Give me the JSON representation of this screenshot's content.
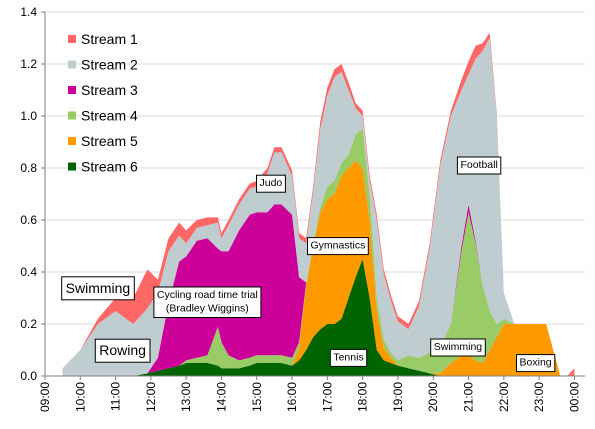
{
  "chart_data": {
    "type": "area",
    "stacked": true,
    "title": "",
    "xlabel": "",
    "ylabel": "",
    "ylim": [
      0,
      1.4
    ],
    "y_ticks": [
      0.0,
      0.2,
      0.4,
      0.6,
      0.8,
      1.0,
      1.2,
      1.4
    ],
    "y_tick_labels": [
      "0.0",
      "0.2",
      "0.4",
      "0.6",
      "0.8",
      "1.0",
      "1.2",
      "1.4"
    ],
    "x_ticks": [
      9,
      10,
      11,
      12,
      13,
      14,
      15,
      16,
      17,
      18,
      19,
      20,
      21,
      22,
      23,
      24
    ],
    "x_tick_labels": [
      "09:00",
      "10:00",
      "11:00",
      "12:00",
      "13:00",
      "14:00",
      "15:00",
      "16:00",
      "17:00",
      "18:00",
      "19:00",
      "20:00",
      "21:00",
      "22:00",
      "23:00",
      "00:00"
    ],
    "xlim": [
      9,
      24.3
    ],
    "grid": "horizontal",
    "legend_position": "top-left",
    "x": [
      9.5,
      10.0,
      10.5,
      11.0,
      11.5,
      11.9,
      12.2,
      12.5,
      12.8,
      13.0,
      13.3,
      13.6,
      13.9,
      14.0,
      14.2,
      14.5,
      14.8,
      15.0,
      15.3,
      15.5,
      15.7,
      16.0,
      16.2,
      16.4,
      16.6,
      16.8,
      17.0,
      17.2,
      17.4,
      17.6,
      17.8,
      18.0,
      18.2,
      18.4,
      18.6,
      18.8,
      19.0,
      19.3,
      19.6,
      19.9,
      20.2,
      20.5,
      20.8,
      21.0,
      21.2,
      21.4,
      21.6,
      21.8,
      22.0,
      22.3,
      22.6,
      22.9,
      23.2,
      23.4,
      23.6,
      23.8,
      24.0
    ],
    "series": [
      {
        "name": "Stream 6",
        "color": "#006400",
        "values": [
          0.0,
          0.0,
          0.0,
          0.0,
          0.0,
          0.01,
          0.02,
          0.03,
          0.04,
          0.05,
          0.05,
          0.05,
          0.04,
          0.03,
          0.03,
          0.03,
          0.04,
          0.05,
          0.05,
          0.05,
          0.05,
          0.04,
          0.06,
          0.1,
          0.15,
          0.18,
          0.2,
          0.2,
          0.22,
          0.3,
          0.38,
          0.45,
          0.3,
          0.1,
          0.06,
          0.05,
          0.04,
          0.03,
          0.02,
          0.01,
          0.0,
          0.0,
          0.0,
          0.0,
          0.0,
          0.0,
          0.0,
          0.0,
          0.0,
          0.0,
          0.0,
          0.0,
          0.0,
          0.0,
          0.0,
          0.0,
          0.0
        ]
      },
      {
        "name": "Stream 5",
        "color": "#FF9900",
        "values": [
          0.0,
          0.0,
          0.0,
          0.0,
          0.0,
          0.0,
          0.0,
          0.0,
          0.0,
          0.0,
          0.0,
          0.0,
          0.0,
          0.0,
          0.0,
          0.0,
          0.0,
          0.0,
          0.0,
          0.0,
          0.0,
          0.0,
          0.05,
          0.25,
          0.35,
          0.45,
          0.48,
          0.5,
          0.55,
          0.5,
          0.45,
          0.35,
          0.3,
          0.15,
          0.05,
          0.02,
          0.0,
          0.0,
          0.0,
          0.0,
          0.01,
          0.05,
          0.08,
          0.08,
          0.06,
          0.05,
          0.1,
          0.15,
          0.2,
          0.2,
          0.2,
          0.2,
          0.2,
          0.1,
          0.0,
          0.0,
          0.0
        ]
      },
      {
        "name": "Stream 4",
        "color": "#99CC66",
        "values": [
          0.0,
          0.0,
          0.0,
          0.0,
          0.0,
          0.0,
          0.0,
          0.0,
          0.0,
          0.01,
          0.02,
          0.03,
          0.15,
          0.1,
          0.05,
          0.03,
          0.03,
          0.03,
          0.03,
          0.03,
          0.03,
          0.03,
          0.02,
          0.01,
          0.01,
          0.02,
          0.05,
          0.05,
          0.05,
          0.05,
          0.1,
          0.15,
          0.1,
          0.05,
          0.03,
          0.02,
          0.02,
          0.05,
          0.05,
          0.08,
          0.1,
          0.15,
          0.4,
          0.55,
          0.45,
          0.3,
          0.15,
          0.05,
          0.02,
          0.0,
          0.0,
          0.0,
          0.0,
          0.0,
          0.0,
          0.0,
          0.0
        ]
      },
      {
        "name": "Stream 3",
        "color": "#CC0099",
        "values": [
          0.0,
          0.0,
          0.0,
          0.0,
          0.0,
          0.0,
          0.05,
          0.25,
          0.4,
          0.4,
          0.45,
          0.45,
          0.3,
          0.35,
          0.4,
          0.5,
          0.55,
          0.55,
          0.55,
          0.58,
          0.58,
          0.55,
          0.25,
          0.0,
          0.0,
          0.0,
          0.0,
          0.0,
          0.0,
          0.0,
          0.0,
          0.0,
          0.0,
          0.0,
          0.0,
          0.0,
          0.0,
          0.0,
          0.0,
          0.0,
          0.0,
          0.0,
          0.02,
          0.03,
          0.01,
          0.0,
          0.0,
          0.0,
          0.0,
          0.0,
          0.0,
          0.0,
          0.0,
          0.0,
          0.0,
          0.0,
          0.0
        ]
      },
      {
        "name": "Stream 2",
        "color": "#BFCCD0",
        "values": [
          0.03,
          0.1,
          0.2,
          0.25,
          0.2,
          0.25,
          0.25,
          0.2,
          0.1,
          0.05,
          0.05,
          0.05,
          0.1,
          0.05,
          0.1,
          0.1,
          0.1,
          0.1,
          0.15,
          0.2,
          0.2,
          0.15,
          0.15,
          0.15,
          0.2,
          0.3,
          0.35,
          0.4,
          0.35,
          0.25,
          0.1,
          0.05,
          0.05,
          0.3,
          0.25,
          0.2,
          0.15,
          0.1,
          0.2,
          0.4,
          0.7,
          0.8,
          0.6,
          0.5,
          0.7,
          0.9,
          1.05,
          0.8,
          0.1,
          0.0,
          0.0,
          0.0,
          0.0,
          0.0,
          0.0,
          0.0,
          0.0
        ]
      },
      {
        "name": "Stream 1",
        "color": "#FF6666",
        "values": [
          0.0,
          0.0,
          0.02,
          0.05,
          0.1,
          0.15,
          0.05,
          0.05,
          0.05,
          0.05,
          0.03,
          0.03,
          0.02,
          0.02,
          0.02,
          0.02,
          0.02,
          0.02,
          0.02,
          0.02,
          0.02,
          0.02,
          0.02,
          0.02,
          0.02,
          0.03,
          0.03,
          0.03,
          0.03,
          0.03,
          0.02,
          0.02,
          0.02,
          0.02,
          0.02,
          0.02,
          0.02,
          0.02,
          0.02,
          0.02,
          0.02,
          0.02,
          0.04,
          0.05,
          0.05,
          0.03,
          0.02,
          0.01,
          0.0,
          0.0,
          0.0,
          0.0,
          0.0,
          0.0,
          0.0,
          0.0,
          0.03
        ]
      }
    ],
    "legend_order": [
      "Stream 1",
      "Stream 2",
      "Stream 3",
      "Stream 4",
      "Stream 5",
      "Stream 6"
    ],
    "annotations": [
      {
        "text": "Swimming",
        "x": 10.5,
        "y": 0.32,
        "size": "large"
      },
      {
        "text": "Rowing",
        "x": 11.2,
        "y": 0.08,
        "size": "large"
      },
      {
        "text": "Cycling road time trial",
        "x": 13.6,
        "y": 0.3,
        "size": "small"
      },
      {
        "text": "(Bradley Wiggins)",
        "x": 13.6,
        "y": 0.26,
        "size": "small"
      },
      {
        "text": "Judo",
        "x": 15.4,
        "y": 0.73,
        "size": "small"
      },
      {
        "text": "Gymnastics",
        "x": 17.3,
        "y": 0.49,
        "size": "small"
      },
      {
        "text": "Tennis",
        "x": 17.6,
        "y": 0.06,
        "size": "small"
      },
      {
        "text": "Football",
        "x": 21.3,
        "y": 0.8,
        "size": "small"
      },
      {
        "text": "Swimming",
        "x": 20.7,
        "y": 0.1,
        "size": "small"
      },
      {
        "text": "Boxing",
        "x": 22.9,
        "y": 0.04,
        "size": "small"
      }
    ]
  }
}
